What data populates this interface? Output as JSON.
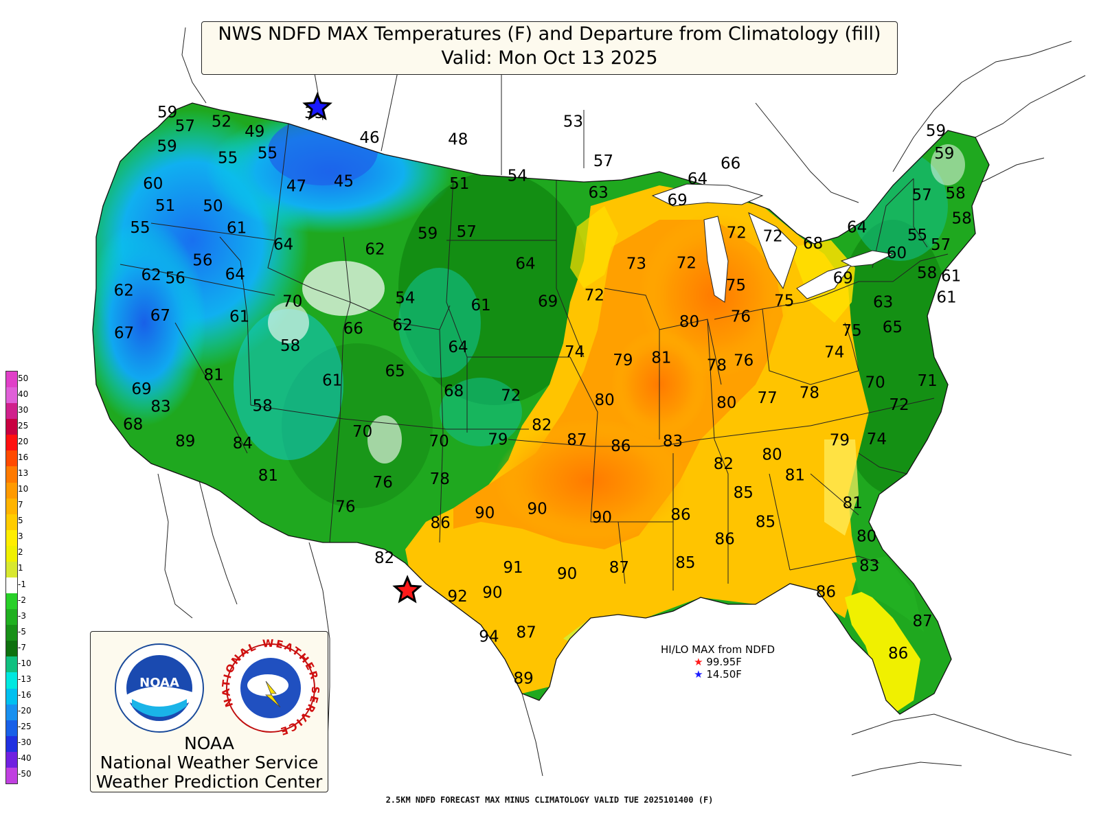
{
  "title": {
    "line1": "NWS NDFD MAX Temperatures (F) and Departure from Climatology (fill)",
    "line2": "Valid: Mon Oct 13 2025"
  },
  "legend": {
    "labels": [
      "50",
      "40",
      "30",
      "25",
      "20",
      "16",
      "13",
      "10",
      "7",
      "5",
      "3",
      "2",
      "1",
      "-1",
      "-2",
      "-3",
      "-5",
      "-7",
      "-10",
      "-13",
      "-16",
      "-20",
      "-25",
      "-30",
      "-40",
      "-50"
    ],
    "colors": [
      "#e040c8",
      "#e060d8",
      "#d0208c",
      "#c80040",
      "#ff1010",
      "#ff4a00",
      "#ff7a00",
      "#ff9a00",
      "#ffb400",
      "#ffcc00",
      "#ffee00",
      "#f0f000",
      "#d8e830",
      "#ffffff",
      "#28d028",
      "#20b020",
      "#189018",
      "#0e700e",
      "#10c080",
      "#00e8e0",
      "#00c0f0",
      "#1890f0",
      "#1860e8",
      "#2030e0",
      "#7020e0",
      "#c040e0"
    ]
  },
  "hilo": {
    "title": "HI/LO MAX from NDFD",
    "high": "99.95F",
    "low": "14.50F",
    "high_color": "#ff1a1a",
    "low_color": "#1a1aff"
  },
  "logo": {
    "line1": "NOAA",
    "line2": "National Weather Service",
    "line3": "Weather Prediction Center",
    "noaa_text": "NOAA",
    "nws_ring": "NATIONAL WEATHER SERVICE"
  },
  "footer": "2.5KM NDFD FORECAST MAX MINUS CLIMATOLOGY VALID TUE 2025101400 (F)",
  "map": {
    "stations": [
      {
        "v": "59",
        "lon": -124.5,
        "lat": 48.3
      },
      {
        "v": "57",
        "lon": -123.0,
        "lat": 47.7
      },
      {
        "v": "52",
        "lon": -120.5,
        "lat": 48.0
      },
      {
        "v": "49",
        "lon": -118.0,
        "lat": 47.6
      },
      {
        "v": "33",
        "lon": -114.0,
        "lat": 48.6
      },
      {
        "v": "59",
        "lon": -123.9,
        "lat": 46.7
      },
      {
        "v": "55",
        "lon": -119.5,
        "lat": 46.3
      },
      {
        "v": "55",
        "lon": -116.8,
        "lat": 46.6
      },
      {
        "v": "46",
        "lon": -109.8,
        "lat": 47.5
      },
      {
        "v": "48",
        "lon": -103.5,
        "lat": 47.5
      },
      {
        "v": "60",
        "lon": -124.2,
        "lat": 44.9
      },
      {
        "v": "51",
        "lon": -123.0,
        "lat": 43.9
      },
      {
        "v": "50",
        "lon": -119.8,
        "lat": 44.0
      },
      {
        "v": "47",
        "lon": -114.4,
        "lat": 45.1
      },
      {
        "v": "45",
        "lon": -111.2,
        "lat": 45.4
      },
      {
        "v": "51",
        "lon": -103.2,
        "lat": 45.4
      },
      {
        "v": "54",
        "lon": -99.2,
        "lat": 45.8
      },
      {
        "v": "53",
        "lon": -95.3,
        "lat": 48.4
      },
      {
        "v": "55",
        "lon": -124.3,
        "lat": 42.8
      },
      {
        "v": "61",
        "lon": -117.9,
        "lat": 43.0
      },
      {
        "v": "64",
        "lon": -114.6,
        "lat": 42.3
      },
      {
        "v": "59",
        "lon": -105.1,
        "lat": 43.0
      },
      {
        "v": "57",
        "lon": -102.5,
        "lat": 43.1
      },
      {
        "v": "57",
        "lon": -93.2,
        "lat": 46.5
      },
      {
        "v": "63",
        "lon": -93.6,
        "lat": 45.0
      },
      {
        "v": "64",
        "lon": -86.7,
        "lat": 45.6
      },
      {
        "v": "66",
        "lon": -84.3,
        "lat": 46.3
      },
      {
        "v": "69",
        "lon": -88.2,
        "lat": 44.6
      },
      {
        "v": "64",
        "lon": -98.5,
        "lat": 41.6
      },
      {
        "v": "56",
        "lon": -119.7,
        "lat": 41.4
      },
      {
        "v": "64",
        "lon": -117.4,
        "lat": 40.8
      },
      {
        "v": "62",
        "lon": -108.5,
        "lat": 42.2
      },
      {
        "v": "72",
        "lon": -84.4,
        "lat": 43.0
      },
      {
        "v": "72",
        "lon": -82.0,
        "lat": 42.8
      },
      {
        "v": "68",
        "lon": -79.4,
        "lat": 42.4
      },
      {
        "v": "62",
        "lon": -122.8,
        "lat": 40.6
      },
      {
        "v": "56",
        "lon": -121.2,
        "lat": 40.5
      },
      {
        "v": "62",
        "lon": -124.3,
        "lat": 39.8
      },
      {
        "v": "70",
        "lon": -113.4,
        "lat": 39.6
      },
      {
        "v": "73",
        "lon": -91.2,
        "lat": 41.6
      },
      {
        "v": "72",
        "lon": -87.9,
        "lat": 41.6
      },
      {
        "v": "75",
        "lon": -84.8,
        "lat": 40.5
      },
      {
        "v": "75",
        "lon": -81.8,
        "lat": 39.7
      },
      {
        "v": "69",
        "lon": -77.8,
        "lat": 40.7
      },
      {
        "v": "60",
        "lon": -74.0,
        "lat": 41.8
      },
      {
        "v": "54",
        "lon": -106.2,
        "lat": 39.9
      },
      {
        "v": "61",
        "lon": -101.3,
        "lat": 39.6
      },
      {
        "v": "69",
        "lon": -97.0,
        "lat": 39.8
      },
      {
        "v": "72",
        "lon": -94.0,
        "lat": 40.1
      },
      {
        "v": "67",
        "lon": -121.6,
        "lat": 38.7
      },
      {
        "v": "61",
        "lon": -116.6,
        "lat": 38.8
      },
      {
        "v": "66",
        "lon": -109.3,
        "lat": 38.4
      },
      {
        "v": "62",
        "lon": -106.2,
        "lat": 38.6
      },
      {
        "v": "80",
        "lon": -88.0,
        "lat": 38.8
      },
      {
        "v": "76",
        "lon": -84.7,
        "lat": 39.0
      },
      {
        "v": "75",
        "lon": -77.8,
        "lat": 38.2
      },
      {
        "v": "63",
        "lon": -75.5,
        "lat": 39.5
      },
      {
        "v": "65",
        "lon": -75.2,
        "lat": 38.3
      },
      {
        "v": "67",
        "lon": -123.6,
        "lat": 37.8
      },
      {
        "v": "58",
        "lon": -113.1,
        "lat": 37.5
      },
      {
        "v": "64",
        "lon": -102.6,
        "lat": 37.6
      },
      {
        "v": "74",
        "lon": -95.3,
        "lat": 37.4
      },
      {
        "v": "79",
        "lon": -92.3,
        "lat": 37.0
      },
      {
        "v": "81",
        "lon": -89.9,
        "lat": 37.1
      },
      {
        "v": "78",
        "lon": -86.5,
        "lat": 36.7
      },
      {
        "v": "76",
        "lon": -84.8,
        "lat": 36.9
      },
      {
        "v": "74",
        "lon": -79.1,
        "lat": 37.2
      },
      {
        "v": "81",
        "lon": -117.5,
        "lat": 36.0
      },
      {
        "v": "65",
        "lon": -106.4,
        "lat": 36.4
      },
      {
        "v": "61",
        "lon": -110.2,
        "lat": 35.9
      },
      {
        "v": "68",
        "lon": -102.7,
        "lat": 35.5
      },
      {
        "v": "72",
        "lon": -99.2,
        "lat": 35.3
      },
      {
        "v": "80",
        "lon": -93.5,
        "lat": 35.1
      },
      {
        "v": "80",
        "lon": -86.1,
        "lat": 34.9
      },
      {
        "v": "77",
        "lon": -83.6,
        "lat": 35.1
      },
      {
        "v": "78",
        "lon": -81.0,
        "lat": 35.3
      },
      {
        "v": "70",
        "lon": -76.9,
        "lat": 35.7
      },
      {
        "v": "71",
        "lon": -73.7,
        "lat": 35.7
      },
      {
        "v": "72",
        "lon": -75.7,
        "lat": 34.6
      },
      {
        "v": "69",
        "lon": -121.7,
        "lat": 35.2
      },
      {
        "v": "83",
        "lon": -120.3,
        "lat": 34.4
      },
      {
        "v": "58",
        "lon": -114.2,
        "lat": 34.6
      },
      {
        "v": "82",
        "lon": -97.3,
        "lat": 33.9
      },
      {
        "v": "87",
        "lon": -95.2,
        "lat": 33.2
      },
      {
        "v": "86",
        "lon": -92.6,
        "lat": 32.9
      },
      {
        "v": "83",
        "lon": -89.5,
        "lat": 33.1
      },
      {
        "v": "70",
        "lon": -108.0,
        "lat": 33.5
      },
      {
        "v": "70",
        "lon": -103.4,
        "lat": 33.1
      },
      {
        "v": "79",
        "lon": -99.9,
        "lat": 33.2
      },
      {
        "v": "82",
        "lon": -86.6,
        "lat": 32.0
      },
      {
        "v": "80",
        "lon": -83.7,
        "lat": 32.4
      },
      {
        "v": "81",
        "lon": -82.5,
        "lat": 31.4
      },
      {
        "v": "79",
        "lon": -79.6,
        "lat": 33.0
      },
      {
        "v": "74",
        "lon": -77.4,
        "lat": 33.0
      },
      {
        "v": "68",
        "lon": -121.7,
        "lat": 33.5
      },
      {
        "v": "89",
        "lon": -118.4,
        "lat": 32.8
      },
      {
        "v": "84",
        "lon": -115.0,
        "lat": 32.8
      },
      {
        "v": "81",
        "lon": -113.2,
        "lat": 31.3
      },
      {
        "v": "76",
        "lon": -106.5,
        "lat": 31.1
      },
      {
        "v": "78",
        "lon": -103.2,
        "lat": 31.3
      },
      {
        "v": "85",
        "lon": -85.6,
        "lat": 30.6
      },
      {
        "v": "90",
        "lon": -100.5,
        "lat": 29.7
      },
      {
        "v": "90",
        "lon": -97.5,
        "lat": 29.9
      },
      {
        "v": "90",
        "lon": -93.8,
        "lat": 29.5
      },
      {
        "v": "86",
        "lon": -89.3,
        "lat": 29.6
      },
      {
        "v": "81",
        "lon": -79.4,
        "lat": 30.0
      },
      {
        "v": "76",
        "lon": -108.5,
        "lat": 29.9
      },
      {
        "v": "86",
        "lon": -103.0,
        "lat": 29.2
      },
      {
        "v": "85",
        "lon": -84.5,
        "lat": 29.2
      },
      {
        "v": "86",
        "lon": -86.9,
        "lat": 28.4
      },
      {
        "v": "80",
        "lon": -78.9,
        "lat": 28.4
      },
      {
        "v": "82",
        "lon": -106.0,
        "lat": 27.5
      },
      {
        "v": "91",
        "lon": -98.8,
        "lat": 27.1
      },
      {
        "v": "90",
        "lon": -95.8,
        "lat": 26.8
      },
      {
        "v": "87",
        "lon": -92.9,
        "lat": 27.1
      },
      {
        "v": "85",
        "lon": -89.2,
        "lat": 27.3
      },
      {
        "v": "83",
        "lon": -79.0,
        "lat": 27.0
      },
      {
        "v": "92",
        "lon": -101.8,
        "lat": 25.7
      },
      {
        "v": "90",
        "lon": -99.9,
        "lat": 25.9
      },
      {
        "v": "86",
        "lon": -81.6,
        "lat": 25.8
      },
      {
        "v": "94",
        "lon": -100.0,
        "lat": 23.8
      },
      {
        "v": "87",
        "lon": -98.0,
        "lat": 24.0
      },
      {
        "v": "87",
        "lon": -76.6,
        "lat": 24.3
      },
      {
        "v": "86",
        "lon": -78.2,
        "lat": 22.8
      },
      {
        "v": "89",
        "lon": -98.1,
        "lat": 21.8
      },
      {
        "v": "59",
        "lon": -69.5,
        "lat": 47.5
      },
      {
        "v": "59",
        "lon": -69.3,
        "lat": 46.4
      },
      {
        "v": "57",
        "lon": -71.5,
        "lat": 44.5
      },
      {
        "v": "58",
        "lon": -69.2,
        "lat": 44.5
      },
      {
        "v": "58",
        "lon": -69.2,
        "lat": 43.3
      },
      {
        "v": "55",
        "lon": -72.4,
        "lat": 42.6
      },
      {
        "v": "57",
        "lon": -71.0,
        "lat": 42.1
      },
      {
        "v": "58",
        "lon": -72.3,
        "lat": 40.8
      },
      {
        "v": "61",
        "lon": -70.8,
        "lat": 40.6
      },
      {
        "v": "61",
        "lon": -71.4,
        "lat": 39.6
      },
      {
        "v": "64",
        "lon": -76.3,
        "lat": 43.1
      }
    ],
    "hi_star": {
      "lon": -104.6,
      "lat": 26.2
    },
    "lo_star": {
      "lon": -113.9,
      "lat": 49.1
    }
  }
}
